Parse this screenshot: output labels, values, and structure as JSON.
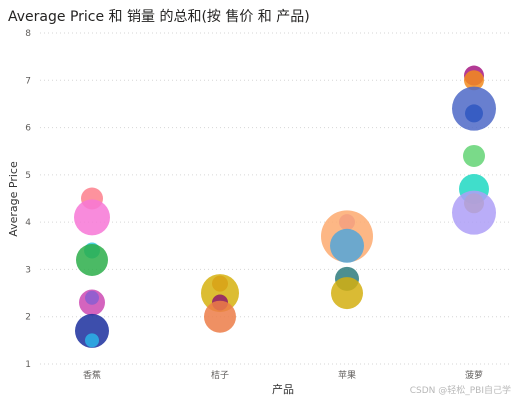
{
  "chart_data": {
    "type": "scatter",
    "title": "Average Price 和 销量 的总和(按 售价 和 产品)",
    "xlabel": "产品",
    "ylabel": "Average Price",
    "categories": [
      "香蕉",
      "桔子",
      "苹果",
      "菠萝"
    ],
    "ylim": [
      1,
      8
    ],
    "yticks": [
      1,
      2,
      3,
      4,
      5,
      6,
      7,
      8
    ],
    "grid": true,
    "points": [
      {
        "x": "香蕉",
        "y": 4.5,
        "size": 11,
        "color": "#fd7f8c"
      },
      {
        "x": "香蕉",
        "y": 4.1,
        "size": 18,
        "color": "#f777d6"
      },
      {
        "x": "香蕉",
        "y": 3.4,
        "size": 8,
        "color": "#2fcadc"
      },
      {
        "x": "香蕉",
        "y": 3.2,
        "size": 16,
        "color": "#2cae4a"
      },
      {
        "x": "香蕉",
        "y": 2.3,
        "size": 13,
        "color": "#cc49b3"
      },
      {
        "x": "香蕉",
        "y": 2.4,
        "size": 7,
        "color": "#8a5ed1"
      },
      {
        "x": "香蕉",
        "y": 1.7,
        "size": 17,
        "color": "#1b2f9e"
      },
      {
        "x": "香蕉",
        "y": 1.5,
        "size": 7,
        "color": "#2ab3e8"
      },
      {
        "x": "桔子",
        "y": 2.7,
        "size": 8,
        "color": "#e44d3a"
      },
      {
        "x": "桔子",
        "y": 2.5,
        "size": 19,
        "color": "#d6b20f"
      },
      {
        "x": "桔子",
        "y": 2.3,
        "size": 8,
        "color": "#8e1a6b"
      },
      {
        "x": "桔子",
        "y": 2.0,
        "size": 16,
        "color": "#ec7d48"
      },
      {
        "x": "苹果",
        "y": 4.0,
        "size": 8,
        "color": "#bc60d6"
      },
      {
        "x": "苹果",
        "y": 3.7,
        "size": 26,
        "color": "#fdaa70"
      },
      {
        "x": "苹果",
        "y": 3.5,
        "size": 17,
        "color": "#52a6d9"
      },
      {
        "x": "苹果",
        "y": 2.8,
        "size": 12,
        "color": "#2e7b7d"
      },
      {
        "x": "苹果",
        "y": 2.5,
        "size": 16,
        "color": "#d4af10"
      },
      {
        "x": "菠萝",
        "y": 7.1,
        "size": 10,
        "color": "#a61783"
      },
      {
        "x": "菠萝",
        "y": 7.0,
        "size": 10,
        "color": "#f28b1d"
      },
      {
        "x": "菠萝",
        "y": 6.4,
        "size": 22,
        "color": "#4d68c7"
      },
      {
        "x": "菠萝",
        "y": 6.3,
        "size": 9,
        "color": "#2f57c1"
      },
      {
        "x": "菠萝",
        "y": 5.4,
        "size": 11,
        "color": "#63d474"
      },
      {
        "x": "菠萝",
        "y": 4.7,
        "size": 15,
        "color": "#1ed8c2"
      },
      {
        "x": "菠萝",
        "y": 4.4,
        "size": 10,
        "color": "#cfa711"
      },
      {
        "x": "菠萝",
        "y": 4.2,
        "size": 22,
        "color": "#ae9ff7"
      }
    ]
  },
  "watermark": "CSDN @轻松_PBI自己学"
}
